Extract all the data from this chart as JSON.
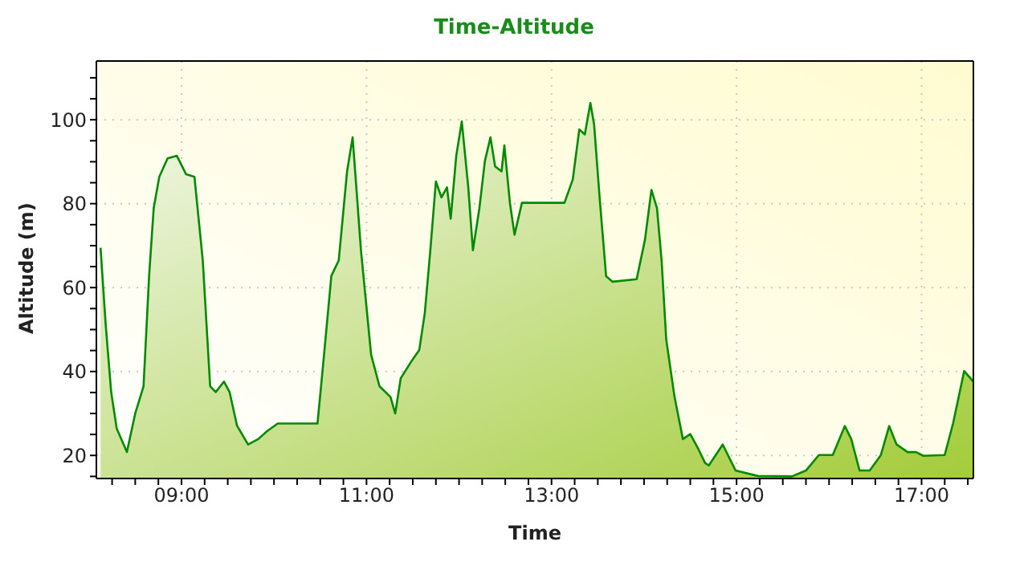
{
  "chart_data": {
    "type": "area",
    "title": "Time-Altitude",
    "xlabel": "Time",
    "ylabel": "Altitude (m)",
    "x": [
      8.125,
      8.18,
      8.24,
      8.3,
      8.41,
      8.5,
      8.59,
      8.65,
      8.7,
      8.76,
      8.85,
      8.95,
      9.05,
      9.14,
      9.23,
      9.31,
      9.37,
      9.46,
      9.52,
      9.6,
      9.72,
      9.83,
      9.92,
      10.04,
      10.47,
      10.53,
      10.62,
      10.7,
      10.79,
      10.85,
      10.94,
      11.05,
      11.14,
      11.26,
      11.31,
      11.37,
      11.49,
      11.57,
      11.63,
      11.69,
      11.75,
      11.81,
      11.87,
      11.91,
      11.97,
      12.03,
      12.1,
      12.15,
      12.22,
      12.28,
      12.34,
      12.39,
      12.46,
      12.49,
      12.55,
      12.6,
      12.68,
      13.14,
      13.23,
      13.3,
      13.36,
      13.42,
      13.46,
      13.52,
      13.59,
      13.66,
      13.92,
      14.01,
      14.08,
      14.14,
      14.19,
      14.24,
      14.33,
      14.42,
      14.5,
      14.59,
      14.66,
      14.7,
      14.85,
      14.99,
      15.23,
      15.6,
      15.75,
      15.89,
      16.04,
      16.17,
      16.24,
      16.33,
      16.44,
      16.56,
      16.65,
      16.73,
      16.85,
      16.94,
      17.02,
      17.25,
      17.34,
      17.46,
      17.56
    ],
    "series": [
      {
        "color": "#008a00",
        "values": [
          69.5,
          51.4,
          35.1,
          26.4,
          20.8,
          30,
          36.5,
          62.8,
          79,
          86.4,
          90.8,
          91.4,
          87,
          86.4,
          66.5,
          36.5,
          35.1,
          37.6,
          35.1,
          27.1,
          22.6,
          23.9,
          25.7,
          27.6,
          27.6,
          41.4,
          62.8,
          66.5,
          87.7,
          95.8,
          68.9,
          44,
          36.5,
          33.9,
          30,
          38.4,
          42.6,
          45.1,
          53.9,
          68.9,
          85.3,
          81.5,
          83.9,
          76.4,
          91.4,
          99.6,
          83.9,
          68.9,
          78.9,
          90.2,
          95.8,
          88.9,
          87.7,
          93.9,
          80.2,
          72.6,
          80.2,
          80.2,
          85.8,
          97.7,
          96.5,
          104,
          98.9,
          81.4,
          62.7,
          61.4,
          62,
          71.4,
          83.3,
          78.9,
          66.4,
          47.6,
          33.9,
          23.9,
          25.1,
          21.4,
          18.2,
          17.6,
          22.6,
          16.4,
          15.1,
          15,
          16.4,
          20.1,
          20.1,
          27,
          23.9,
          16.4,
          16.4,
          20.1,
          27,
          22.6,
          20.8,
          20.8,
          19.9,
          20.1,
          27.6,
          40.1,
          37.6
        ]
      }
    ],
    "xlim": [
      8.08,
      17.56
    ],
    "xticks": [
      {
        "value": 8.25,
        "label": null
      },
      {
        "value": 8.5,
        "label": null
      },
      {
        "value": 8.75,
        "label": null
      },
      {
        "value": 9,
        "label": "09:00"
      },
      {
        "value": 9.25,
        "label": null
      },
      {
        "value": 9.5,
        "label": null
      },
      {
        "value": 9.75,
        "label": null
      },
      {
        "value": 10,
        "label": null
      },
      {
        "value": 10.25,
        "label": null
      },
      {
        "value": 10.5,
        "label": null
      },
      {
        "value": 10.75,
        "label": null
      },
      {
        "value": 11,
        "label": "11:00"
      },
      {
        "value": 11.25,
        "label": null
      },
      {
        "value": 11.5,
        "label": null
      },
      {
        "value": 11.75,
        "label": null
      },
      {
        "value": 12,
        "label": null
      },
      {
        "value": 12.25,
        "label": null
      },
      {
        "value": 12.5,
        "label": null
      },
      {
        "value": 12.75,
        "label": null
      },
      {
        "value": 13,
        "label": "13:00"
      },
      {
        "value": 13.25,
        "label": null
      },
      {
        "value": 13.5,
        "label": null
      },
      {
        "value": 13.75,
        "label": null
      },
      {
        "value": 14,
        "label": null
      },
      {
        "value": 14.25,
        "label": null
      },
      {
        "value": 14.5,
        "label": null
      },
      {
        "value": 14.75,
        "label": null
      },
      {
        "value": 15,
        "label": "15:00"
      },
      {
        "value": 15.25,
        "label": null
      },
      {
        "value": 15.5,
        "label": null
      },
      {
        "value": 15.75,
        "label": null
      },
      {
        "value": 16,
        "label": null
      },
      {
        "value": 16.25,
        "label": null
      },
      {
        "value": 16.5,
        "label": null
      },
      {
        "value": 16.75,
        "label": null
      },
      {
        "value": 17,
        "label": "17:00"
      },
      {
        "value": 17.25,
        "label": null
      },
      {
        "value": 17.5,
        "label": null
      }
    ],
    "ylim": [
      14.5,
      114
    ],
    "yticks": [
      {
        "value": 15,
        "label": null
      },
      20,
      {
        "value": 25,
        "label": null
      },
      {
        "value": 30,
        "label": null
      },
      {
        "value": 35,
        "label": null
      },
      40,
      {
        "value": 45,
        "label": null
      },
      {
        "value": 50,
        "label": null
      },
      {
        "value": 55,
        "label": null
      },
      60,
      {
        "value": 65,
        "label": null
      },
      {
        "value": 70,
        "label": null
      },
      {
        "value": 75,
        "label": null
      },
      80,
      {
        "value": 85,
        "label": null
      },
      {
        "value": 90,
        "label": null
      },
      {
        "value": 95,
        "label": null
      },
      100,
      {
        "value": 105,
        "label": null
      },
      {
        "value": 110,
        "label": null
      }
    ],
    "grid": true,
    "legend": false
  }
}
